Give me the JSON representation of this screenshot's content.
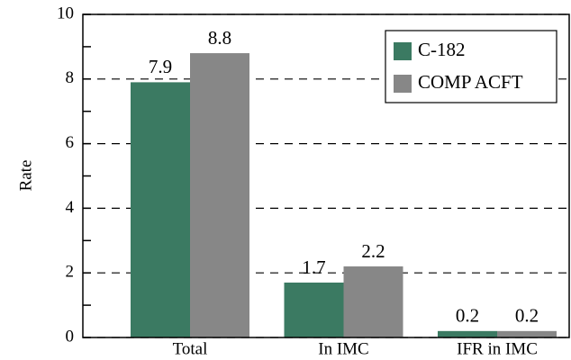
{
  "chart_data": {
    "type": "bar",
    "y_label": "Rate",
    "categories": [
      "Total",
      "In IMC",
      "IFR in IMC"
    ],
    "series": [
      {
        "name": "C-182",
        "color": "#3b7a62",
        "values": [
          7.9,
          1.7,
          0.2
        ]
      },
      {
        "name": "COMP ACFT",
        "color": "#878787",
        "values": [
          8.8,
          2.2,
          0.2
        ]
      }
    ],
    "ylim": [
      0,
      10
    ],
    "yticks": [
      0,
      2,
      4,
      6,
      8,
      10
    ],
    "minor_yticks": [
      1,
      3,
      5,
      7,
      9
    ],
    "grid": true,
    "legend": "upper right"
  }
}
